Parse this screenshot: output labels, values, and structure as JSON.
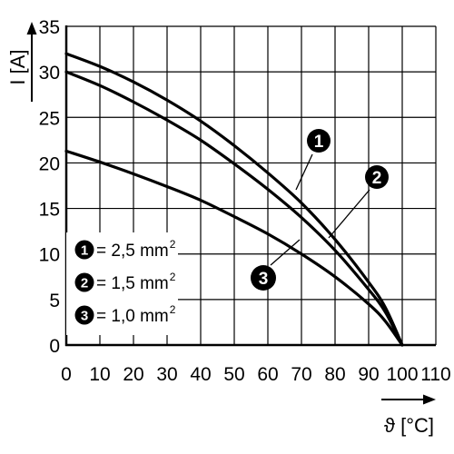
{
  "chart_data": {
    "type": "line",
    "xlabel": "ϑ [°C]",
    "ylabel": "I [A]",
    "xlim": [
      0,
      110
    ],
    "ylim": [
      0,
      35
    ],
    "x_ticks": [
      "0",
      "10",
      "20",
      "30",
      "40",
      "50",
      "60",
      "70",
      "80",
      "90",
      "100",
      "110"
    ],
    "y_ticks": [
      "0",
      "5",
      "10",
      "15",
      "20",
      "25",
      "30",
      "35"
    ],
    "grid": true,
    "legend_position": "bottom-left",
    "series": [
      {
        "marker": "1",
        "legend_value": "= 2,5 mm",
        "legend_sup": "2",
        "x": [
          0,
          10,
          20,
          30,
          40,
          50,
          60,
          70,
          80,
          90,
          95,
          100
        ],
        "y": [
          32,
          30.6,
          28.9,
          26.9,
          24.6,
          21.9,
          18.9,
          15.6,
          11.6,
          6.9,
          4.1,
          0
        ]
      },
      {
        "marker": "2",
        "legend_value": "= 1,5 mm",
        "legend_sup": "2",
        "x": [
          0,
          10,
          20,
          30,
          40,
          50,
          60,
          70,
          80,
          90,
          95,
          100
        ],
        "y": [
          30,
          28.5,
          26.7,
          24.7,
          22.5,
          19.9,
          17.1,
          14.0,
          10.4,
          6.1,
          3.6,
          0
        ]
      },
      {
        "marker": "3",
        "legend_value": "= 1,0 mm",
        "legend_sup": "2",
        "x": [
          0,
          10,
          20,
          30,
          40,
          50,
          60,
          70,
          80,
          90,
          95,
          100
        ],
        "y": [
          21.3,
          20.1,
          18.8,
          17.4,
          15.9,
          14.1,
          12.2,
          10.0,
          7.5,
          4.5,
          2.6,
          0
        ]
      }
    ]
  }
}
